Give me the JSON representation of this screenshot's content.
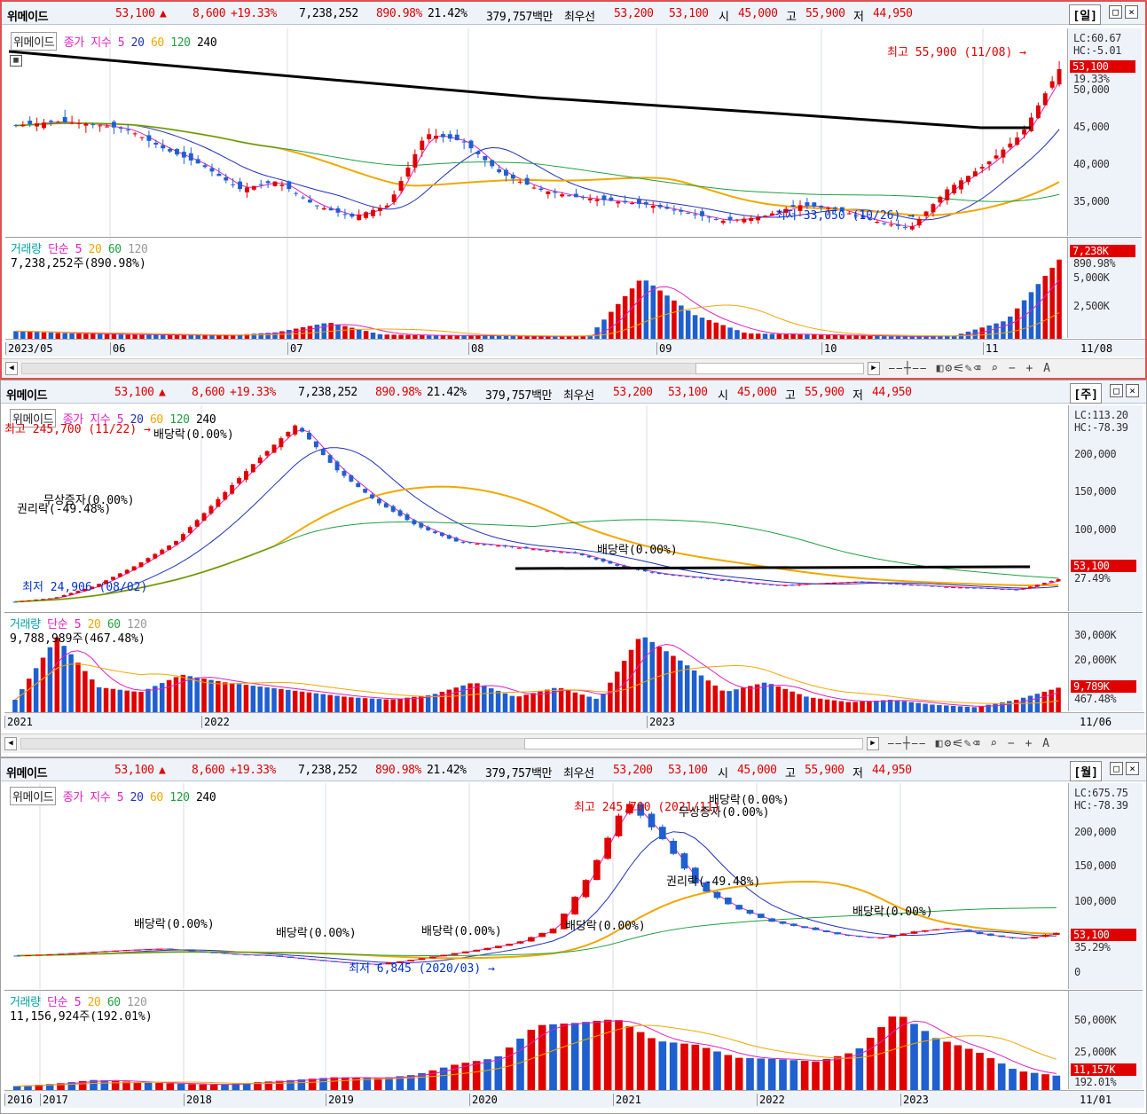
{
  "stock": {
    "name": "위메이드",
    "price": "53,100",
    "arrow": "▲",
    "change": "8,600",
    "change_pct": "+19.33%",
    "volume": "7,238,252",
    "vol_ratio": "890.98%",
    "turnover": "21.42%",
    "amount": "379,757백만",
    "best_label": "최우선",
    "ask": "53,200",
    "bid": "53,100",
    "open_label": "시",
    "open": "45,000",
    "high_label": "고",
    "high": "55,900",
    "low_label": "저",
    "low": "44,950"
  },
  "legend": {
    "name_box": "위메이드",
    "price_type": "종가 지수",
    "ma5": "5",
    "ma20": "20",
    "ma60": "60",
    "ma120": "120",
    "ma240": "240",
    "vol_label": "거래량",
    "vol_type": "단순",
    "v5": "5",
    "v20": "20",
    "v60": "60",
    "v120": "120"
  },
  "panels": {
    "daily": {
      "period": "[일]",
      "lc": "LC:60.67",
      "hc": "HC:-5.01",
      "price_tag": "53,100",
      "pct_tag": "19.33%",
      "y_ticks": [
        "50,000",
        "45,000",
        "40,000",
        "35,000"
      ],
      "high_note": "최고 55,900 (11/08) →",
      "low_note": "최저 33,050 (10/26) →",
      "vol_text": "7,238,252주(890.98%)",
      "vol_tag": "7,238K",
      "vol_pct_tag": "890.98%",
      "vol_ticks": [
        "5,000K",
        "2,500K"
      ],
      "x_labels": [
        "2023/05",
        "06",
        "07",
        "08",
        "09",
        "10",
        "11"
      ],
      "x_end": "11/08"
    },
    "weekly": {
      "period": "[주]",
      "lc": "LC:113.20",
      "hc": "HC:-78.39",
      "price_tag": "53,100",
      "pct_tag": "27.49%",
      "y_ticks": [
        "200,000",
        "150,000",
        "100,000"
      ],
      "high_note": "최고 245,700 (11/22) →",
      "low_note": "최저 24,906 (08/02)",
      "events": [
        "배당락(0.00%)",
        "무상증자(0.00%)",
        "권리락(-49.48%)",
        "배당락(0.00%)"
      ],
      "vol_text": "9,788,989주(467.48%)",
      "vol_tag": "9,789K",
      "vol_pct_tag": "467.48%",
      "vol_ticks": [
        "30,000K",
        "20,000K"
      ],
      "x_labels": [
        "2021",
        "2022",
        "2023"
      ],
      "x_end": "11/06"
    },
    "monthly": {
      "period": "[월]",
      "lc": "LC:675.75",
      "hc": "HC:-78.39",
      "price_tag": "53,100",
      "pct_tag": "35.29%",
      "y_ticks": [
        "200,000",
        "150,000",
        "100,000",
        "50,000",
        "0"
      ],
      "high_note": "최고 245,700 (2021/11)",
      "low_note": "최저 6,845 (2020/03) →",
      "events": [
        "배당락(0.00%)",
        "배당락(0.00%)",
        "배당락(0.00%)",
        "배당락(0.00%)",
        "권리락(-49.48%)",
        "무상증자(0.00%)",
        "배당락(0.00%)",
        "배당락(0.00%)"
      ],
      "vol_text": "11,156,924주(192.01%)",
      "vol_tag": "11,157K",
      "vol_pct_tag": "192.01%",
      "vol_ticks": [
        "50,000K",
        "25,000K"
      ],
      "x_labels": [
        "2016",
        "2017",
        "2018",
        "2019",
        "2020",
        "2021",
        "2022",
        "2023"
      ],
      "x_end": "11/01"
    }
  },
  "colors": {
    "up": "#e00000",
    "down": "#1f5fd0",
    "ma5": "#e020c0",
    "ma20": "#2030c0",
    "ma60": "#f0a800",
    "ma120": "#20a040",
    "ma240": "#000000"
  },
  "chart_data": [
    {
      "type": "candlestick",
      "title": "위메이드 일봉",
      "x_range": [
        "2023/05",
        "11/08"
      ],
      "ylim": [
        33000,
        56000
      ],
      "close_approx": [
        46000,
        46500,
        46200,
        45500,
        43000,
        41000,
        38000,
        39000,
        36000,
        34500,
        36000,
        45000,
        44000,
        40000,
        38000,
        37000,
        36500,
        36000,
        35000,
        34000,
        34500,
        36000,
        35500,
        34000,
        33050,
        38000,
        41000,
        45000,
        53100
      ],
      "last_candle": {
        "open": 45000,
        "high": 55900,
        "low": 44950,
        "close": 53100
      },
      "volume_series_k": [
        700,
        500,
        400,
        350,
        300,
        600,
        1500,
        400,
        300,
        300,
        200,
        300,
        5600,
        2200,
        500,
        400,
        300,
        200,
        300,
        1700,
        7238
      ]
    },
    {
      "type": "candlestick",
      "title": "위메이드 주봉",
      "x_range": [
        "2021",
        "11/06"
      ],
      "ylim": [
        20000,
        250000
      ],
      "close_approx": [
        25000,
        30000,
        45000,
        70000,
        100000,
        150000,
        200000,
        245700,
        190000,
        150000,
        120000,
        100000,
        95000,
        90000,
        85000,
        70000,
        60000,
        55000,
        50000,
        45000,
        48000,
        50000,
        47000,
        44000,
        42000,
        40000,
        53100
      ],
      "volume_series_k": [
        5000,
        30000,
        10000,
        8000,
        15000,
        12000,
        10000,
        8000,
        6000,
        5000,
        7000,
        12000,
        6000,
        10000,
        5000,
        31000,
        20000,
        8000,
        12000,
        6000,
        4000,
        5000,
        3000,
        2000,
        5000,
        9789
      ]
    },
    {
      "type": "candlestick",
      "title": "위메이드 월봉",
      "x_range": [
        "2016",
        "11/01"
      ],
      "ylim": [
        0,
        250000
      ],
      "close_approx": [
        20000,
        22000,
        25000,
        28000,
        30000,
        26000,
        22000,
        20000,
        15000,
        10000,
        6845,
        14000,
        22000,
        30000,
        40000,
        60000,
        140000,
        245700,
        190000,
        120000,
        90000,
        70000,
        60000,
        50000,
        45000,
        55000,
        60000,
        50000,
        44000,
        53100
      ],
      "volume_series_k": [
        3000,
        5000,
        8000,
        6000,
        5000,
        4000,
        6000,
        8000,
        10000,
        9000,
        12000,
        20000,
        25000,
        50000,
        52000,
        55000,
        38000,
        35000,
        25000,
        24000,
        22000,
        30000,
        60000,
        40000,
        30000,
        15000,
        11157
      ]
    }
  ]
}
